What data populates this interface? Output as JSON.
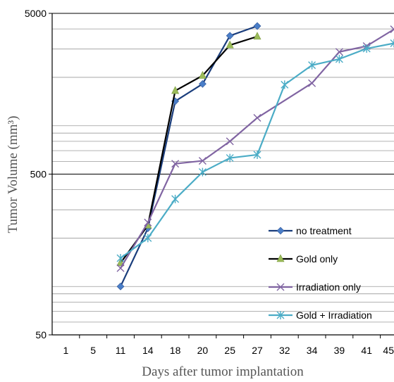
{
  "chart_data": {
    "type": "line",
    "title": "",
    "xlabel": "Days after tumor implantation",
    "ylabel": "Tumor Volume (mm³)",
    "y_scale": "log",
    "ylim": [
      50,
      5000
    ],
    "y_ticks": [
      "50",
      "500",
      "5000"
    ],
    "grid": "horizontal minor gridlines (log scale)",
    "legend_position": "bottom-right",
    "categories": [
      "1",
      "5",
      "11",
      "14",
      "18",
      "20",
      "25",
      "27",
      "32",
      "34",
      "39",
      "41",
      "45"
    ],
    "series": [
      {
        "name": "no treatment",
        "line_color": "#1a3d7c",
        "marker_color": "#4a7ec8",
        "marker": "diamond",
        "values": [
          null,
          null,
          100,
          230,
          1420,
          1820,
          3630,
          4170,
          null,
          null,
          null,
          null,
          null
        ]
      },
      {
        "name": "Gold only",
        "line_color": "#000000",
        "marker_color": "#9bbb59",
        "marker": "triangle",
        "values": [
          null,
          null,
          140,
          240,
          1650,
          2050,
          3170,
          3590,
          null,
          null,
          null,
          null,
          null
        ]
      },
      {
        "name": "Irradiation only",
        "line_color": "#8064a2",
        "marker_color": "#8064a2",
        "marker": "x",
        "values": [
          null,
          null,
          130,
          250,
          580,
          605,
          800,
          1120,
          null,
          1840,
          2880,
          3130,
          3980
        ]
      },
      {
        "name": "Gold + Irradiation",
        "line_color": "#4bacc6",
        "marker_color": "#4bacc6",
        "marker": "star",
        "values": [
          null,
          null,
          150,
          200,
          350,
          515,
          630,
          660,
          1800,
          2380,
          2600,
          3020,
          3260
        ]
      }
    ]
  }
}
